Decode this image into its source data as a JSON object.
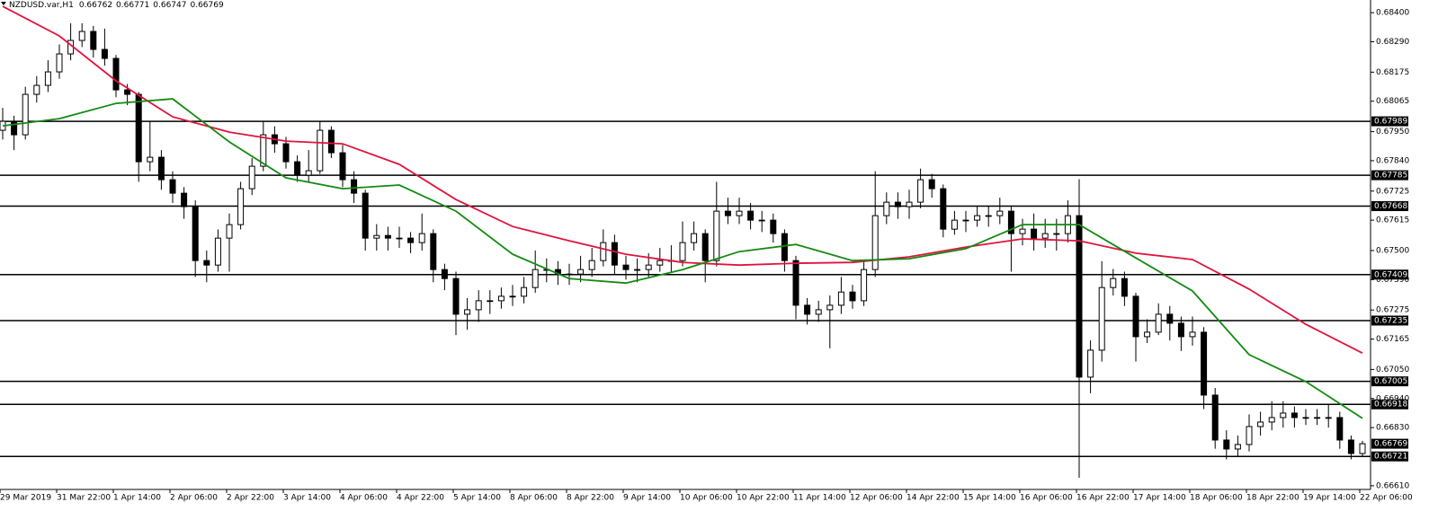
{
  "chart_data": {
    "type": "candlestick",
    "symbol": "NZDUSD.var,H1",
    "quote": [
      0.66762,
      0.66771,
      0.66747,
      0.66769
    ],
    "categories": [
      "29 Mar 2019",
      null,
      null,
      null,
      null,
      "31 Mar 22:00",
      null,
      null,
      null,
      null,
      "1 Apr 14:00",
      null,
      null,
      null,
      null,
      "2 Apr 06:00",
      null,
      null,
      null,
      null,
      "2 Apr 22:00",
      null,
      null,
      null,
      null,
      "3 Apr 14:00",
      null,
      null,
      null,
      null,
      "4 Apr 06:00",
      null,
      null,
      null,
      null,
      "4 Apr 22:00",
      null,
      null,
      null,
      null,
      "5 Apr 14:00",
      null,
      null,
      null,
      null,
      "8 Apr 06:00",
      null,
      null,
      null,
      null,
      "8 Apr 22:00",
      null,
      null,
      null,
      null,
      "9 Apr 14:00",
      null,
      null,
      null,
      null,
      "10 Apr 06:00",
      null,
      null,
      null,
      null,
      "10 Apr 22:00",
      null,
      null,
      null,
      null,
      "11 Apr 14:00",
      null,
      null,
      null,
      null,
      "12 Apr 06:00",
      null,
      null,
      null,
      null,
      "14 Apr 22:00",
      null,
      null,
      null,
      null,
      "15 Apr 14:00",
      null,
      null,
      null,
      null,
      "16 Apr 06:00",
      null,
      null,
      null,
      null,
      "16 Apr 22:00",
      null,
      null,
      null,
      null,
      "17 Apr 14:00",
      null,
      null,
      null,
      null,
      "18 Apr 06:00",
      null,
      null,
      null,
      null,
      "18 Apr 22:00",
      null,
      null,
      null,
      null,
      "19 Apr 14:00",
      null,
      null,
      null,
      null,
      "22 Apr 06:00"
    ],
    "open": [
      0.67955,
      0.67989,
      0.67938,
      0.68091,
      0.68125,
      0.68176,
      0.68244,
      0.68295,
      0.68329,
      0.68261,
      0.68227,
      0.68108,
      0.68091,
      0.67836,
      0.67853,
      0.67768,
      0.67717,
      0.67666,
      0.67462,
      0.67445,
      0.67547,
      0.67598,
      0.67734,
      0.67819,
      0.67938,
      0.67904,
      0.67836,
      0.67785,
      0.67802,
      0.67955,
      0.6787,
      0.67768,
      0.67717,
      0.67547,
      0.67557,
      0.67547,
      0.67547,
      0.6753,
      0.67564,
      0.67428,
      0.67394,
      0.67259,
      0.67276,
      0.6731,
      0.6731,
      0.67327,
      0.67327,
      0.6736,
      0.67428,
      0.67428,
      0.67411,
      0.67411,
      0.67428,
      0.67462,
      0.6753,
      0.67445,
      0.67428,
      0.67428,
      0.67445,
      0.67462,
      0.67462,
      0.6753,
      0.67564,
      0.67462,
      0.67649,
      0.67632,
      0.67649,
      0.67615,
      0.67615,
      0.67564,
      0.67462,
      0.67293,
      0.67259,
      0.67276,
      0.67293,
      0.67343,
      0.6731,
      0.67428,
      0.67632,
      0.67683,
      0.67666,
      0.67683,
      0.67768,
      0.67734,
      0.67581,
      0.67615,
      0.67615,
      0.67632,
      0.67632,
      0.67649,
      0.67564,
      0.67581,
      0.67547,
      0.67564,
      0.67564,
      0.67632,
      0.67021,
      0.67123,
      0.6736,
      0.67394,
      0.67327,
      0.67174,
      0.67191,
      0.67259,
      0.67225,
      0.67174,
      0.67191,
      0.66953,
      0.66783,
      0.66749,
      0.66766,
      0.66834,
      0.66851,
      0.66868,
      0.66885,
      0.66868,
      0.66868,
      0.66868,
      0.66868,
      0.66783,
      0.66732
    ],
    "high": [
      0.6804,
      0.6801,
      0.6812,
      0.6816,
      0.6822,
      0.6828,
      0.6836,
      0.6836,
      0.6835,
      0.6834,
      0.6824,
      0.6813,
      0.681,
      0.6799,
      0.6788,
      0.678,
      0.6774,
      0.6769,
      0.675,
      0.6758,
      0.6764,
      0.6776,
      0.6785,
      0.67989,
      0.6797,
      0.6793,
      0.6786,
      0.6788,
      0.6799,
      0.6797,
      0.679,
      0.678,
      0.6773,
      0.676,
      0.6759,
      0.6759,
      0.6757,
      0.6764,
      0.6758,
      0.6745,
      0.6742,
      0.6732,
      0.6735,
      0.6735,
      0.6736,
      0.6737,
      0.674,
      0.675,
      0.6747,
      0.6746,
      0.6745,
      0.6748,
      0.6751,
      0.6758,
      0.6756,
      0.6748,
      0.6747,
      0.6749,
      0.6751,
      0.6752,
      0.6761,
      0.6761,
      0.6758,
      0.6776,
      0.677,
      0.677,
      0.6768,
      0.6765,
      0.6764,
      0.6758,
      0.6748,
      0.6732,
      0.6731,
      0.6733,
      0.674,
      0.6737,
      0.6746,
      0.678,
      0.6772,
      0.6772,
      0.6773,
      0.6781,
      0.6779,
      0.6775,
      0.6765,
      0.6765,
      0.6767,
      0.6767,
      0.677,
      0.6767,
      0.6762,
      0.6764,
      0.6762,
      0.6762,
      0.6769,
      0.6777,
      0.6716,
      0.6746,
      0.6743,
      0.6742,
      0.6734,
      0.6724,
      0.673,
      0.6729,
      0.6725,
      0.6725,
      0.6721,
      0.6698,
      0.6682,
      0.668,
      0.6688,
      0.6689,
      0.6693,
      0.6693,
      0.6691,
      0.669,
      0.669,
      0.6692,
      0.6689,
      0.668,
      0.6678
    ],
    "low": [
      0.6792,
      0.6788,
      0.6792,
      0.6806,
      0.681,
      0.6815,
      0.6822,
      0.6827,
      0.6823,
      0.682,
      0.6808,
      0.6805,
      0.6776,
      0.678,
      0.6773,
      0.6768,
      0.6762,
      0.674,
      0.6738,
      0.6742,
      0.6742,
      0.6758,
      0.6771,
      0.678,
      0.6787,
      0.6781,
      0.6776,
      0.6776,
      0.6779,
      0.6785,
      0.6774,
      0.6768,
      0.675,
      0.675,
      0.675,
      0.6751,
      0.6749,
      0.675,
      0.6738,
      0.6735,
      0.6718,
      0.672,
      0.6723,
      0.6726,
      0.6728,
      0.6729,
      0.673,
      0.6734,
      0.6738,
      0.6737,
      0.6737,
      0.6738,
      0.674,
      0.6744,
      0.6741,
      0.6739,
      0.6738,
      0.674,
      0.6742,
      0.6742,
      0.6744,
      0.675,
      0.6738,
      0.6744,
      0.676,
      0.676,
      0.6758,
      0.6757,
      0.6753,
      0.6742,
      0.6724,
      0.6722,
      0.6723,
      0.6713,
      0.6726,
      0.6728,
      0.6729,
      0.674,
      0.676,
      0.6762,
      0.6762,
      0.6766,
      0.677,
      0.6755,
      0.6756,
      0.6757,
      0.6759,
      0.6759,
      0.676,
      0.6742,
      0.6752,
      0.675,
      0.6751,
      0.675,
      0.6753,
      0.6664,
      0.6696,
      0.6708,
      0.6733,
      0.6729,
      0.6708,
      0.6715,
      0.6718,
      0.6716,
      0.6712,
      0.6714,
      0.669,
      0.6675,
      0.6671,
      0.6672,
      0.6674,
      0.668,
      0.6682,
      0.6683,
      0.6683,
      0.6684,
      0.6684,
      0.6683,
      0.6675,
      0.6671,
      0.6672
    ],
    "close": [
      0.67989,
      0.67938,
      0.68091,
      0.68125,
      0.68176,
      0.68244,
      0.68295,
      0.68329,
      0.68261,
      0.68227,
      0.68108,
      0.68091,
      0.67836,
      0.67853,
      0.67768,
      0.67717,
      0.67666,
      0.67462,
      0.67445,
      0.67547,
      0.67598,
      0.67734,
      0.67819,
      0.67938,
      0.67904,
      0.67836,
      0.67785,
      0.67802,
      0.67955,
      0.6787,
      0.67768,
      0.67717,
      0.67547,
      0.67557,
      0.67547,
      0.67547,
      0.6753,
      0.67564,
      0.67428,
      0.67394,
      0.67259,
      0.67276,
      0.6731,
      0.6731,
      0.67327,
      0.67327,
      0.6736,
      0.67428,
      0.67428,
      0.67411,
      0.67411,
      0.67428,
      0.67462,
      0.6753,
      0.67445,
      0.67428,
      0.67428,
      0.67445,
      0.67462,
      0.67462,
      0.6753,
      0.67564,
      0.67462,
      0.67649,
      0.67632,
      0.67649,
      0.67615,
      0.67615,
      0.67564,
      0.67462,
      0.67293,
      0.67259,
      0.67276,
      0.67293,
      0.67343,
      0.6731,
      0.67428,
      0.67632,
      0.67683,
      0.67666,
      0.67683,
      0.67768,
      0.67734,
      0.67581,
      0.67615,
      0.67615,
      0.67632,
      0.67632,
      0.67649,
      0.67564,
      0.67581,
      0.67547,
      0.67564,
      0.67564,
      0.67632,
      0.67021,
      0.67123,
      0.6736,
      0.67394,
      0.67327,
      0.67174,
      0.67191,
      0.67259,
      0.67225,
      0.67174,
      0.67191,
      0.66953,
      0.66783,
      0.66749,
      0.66766,
      0.66834,
      0.66851,
      0.66868,
      0.66885,
      0.66868,
      0.66868,
      0.66868,
      0.66868,
      0.66783,
      0.66732,
      0.66769
    ],
    "lines": [
      {
        "color": "#e0143c",
        "x": [
          0,
          5,
          10,
          15,
          20,
          25,
          30,
          35,
          40,
          45,
          50,
          55,
          60,
          65,
          70,
          75,
          80,
          85,
          90,
          95,
          100,
          105,
          110,
          115,
          120
        ],
        "values": [
          0.68424,
          0.68312,
          0.68142,
          0.68006,
          0.67948,
          0.67914,
          0.67904,
          0.67826,
          0.67693,
          0.67591,
          0.67537,
          0.67486,
          0.67455,
          0.67445,
          0.67452,
          0.67455,
          0.67476,
          0.67513,
          0.67544,
          0.67537,
          0.6749,
          0.67466,
          0.67354,
          0.67221,
          0.67112
        ]
      },
      {
        "color": "#138a13",
        "x": [
          0,
          5,
          10,
          15,
          20,
          25,
          30,
          35,
          40,
          45,
          50,
          55,
          60,
          65,
          70,
          75,
          80,
          85,
          90,
          95,
          100,
          105,
          110,
          115,
          120
        ],
        "values": [
          0.67972,
          0.67999,
          0.68057,
          0.68074,
          0.67911,
          0.67775,
          0.67734,
          0.67748,
          0.67649,
          0.67486,
          0.67394,
          0.67377,
          0.67428,
          0.67496,
          0.67523,
          0.67462,
          0.67469,
          0.67507,
          0.67598,
          0.67598,
          0.67472,
          0.67347,
          0.67106,
          0.67004,
          0.66865
        ]
      }
    ],
    "levels": [
      0.67989,
      0.67785,
      0.67668,
      0.67409,
      0.67235,
      0.67005,
      0.66918,
      0.66721
    ],
    "current_price": 0.66769,
    "ylim": [
      0.66596,
      0.68448
    ],
    "yticks": [
      {
        "value": 0.684,
        "label": "0.68400"
      },
      {
        "value": 0.6829,
        "label": "0.68290"
      },
      0.68175,
      0.68065,
      {
        "value": 0.6795,
        "label": "0.67950"
      },
      {
        "value": 0.6784,
        "label": "0.67840"
      },
      0.67725,
      0.67615,
      {
        "value": 0.675,
        "label": "0.67500"
      },
      {
        "value": 0.6739,
        "label": "0.67390"
      },
      0.67275,
      0.67165,
      {
        "value": 0.6705,
        "label": "0.67050"
      },
      {
        "value": 0.6694,
        "label": "0.66940"
      },
      {
        "value": 0.6683,
        "label": "0.66830"
      },
      {
        "value": 0.6661,
        "label": "0.66610"
      }
    ]
  }
}
